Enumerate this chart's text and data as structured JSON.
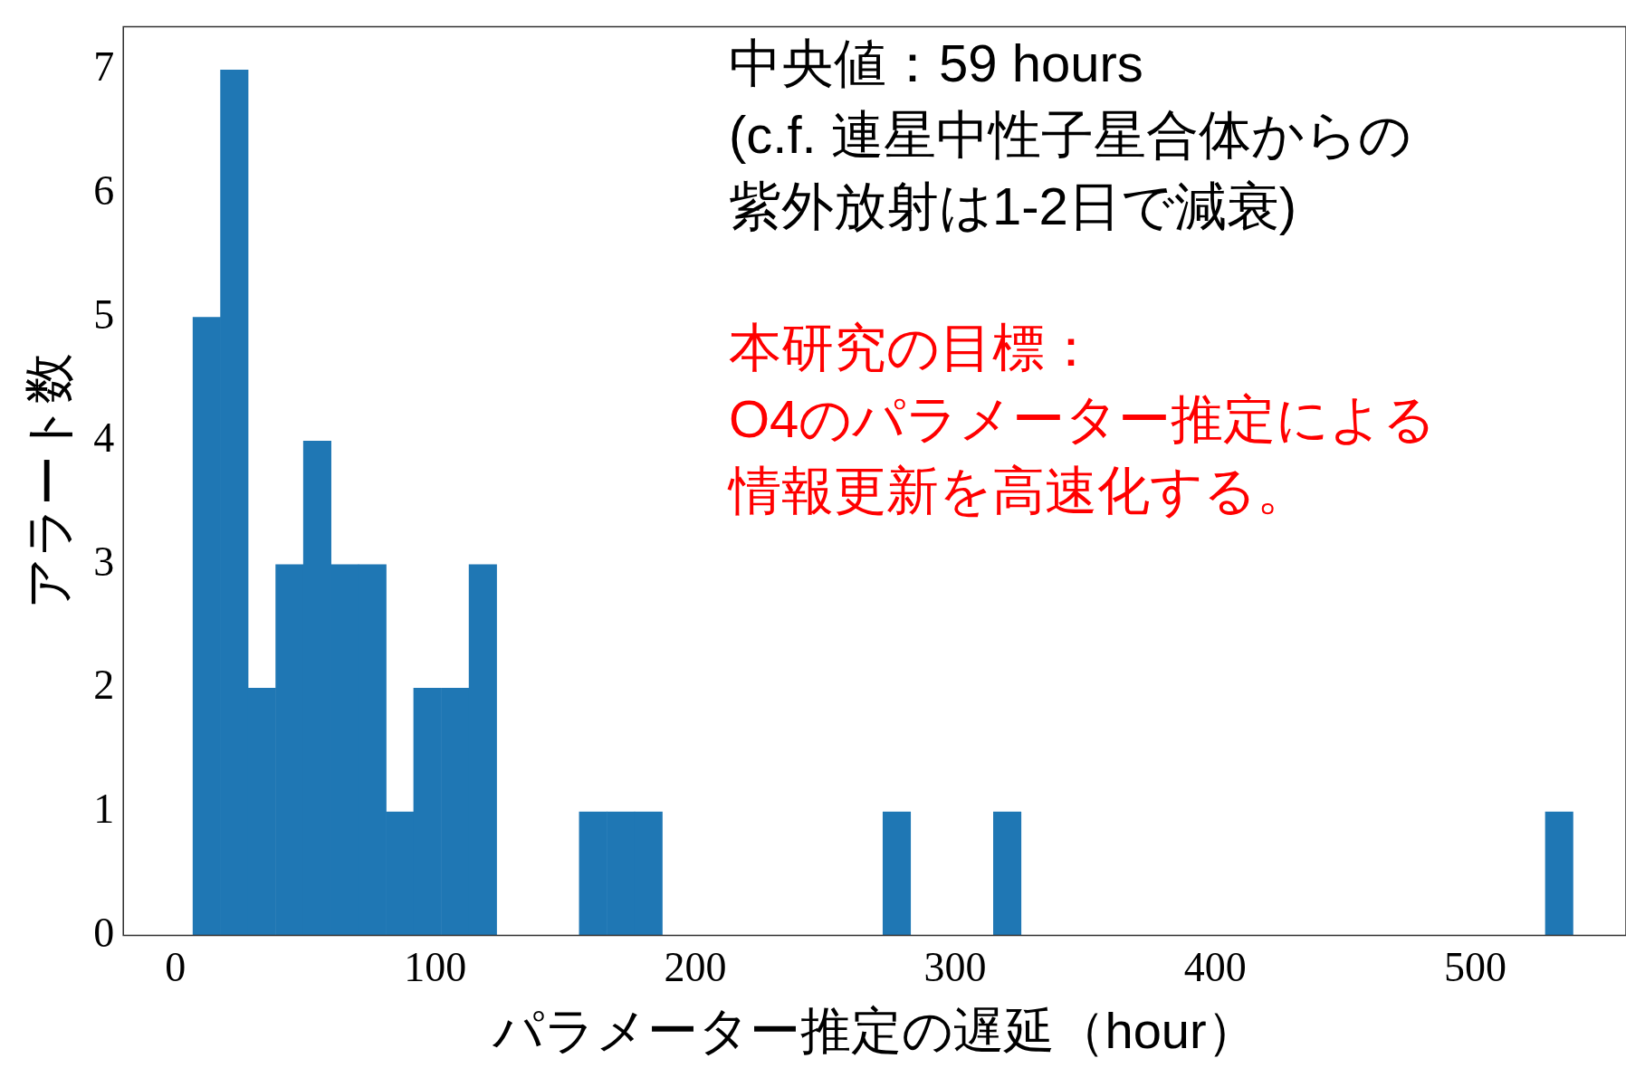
{
  "chart_data": {
    "type": "histogram",
    "xlabel": "パラメーター推定の遅延（hour）",
    "ylabel": "アラート数",
    "bins": [
      6.8,
      17.4,
      28.0,
      38.6,
      49.3,
      59.9,
      70.5,
      81.1,
      91.7,
      102.3,
      113.0,
      123.6,
      134.2,
      144.8,
      155.4,
      166.0,
      176.7,
      187.3,
      197.9,
      208.5,
      219.1,
      229.7,
      240.4,
      251.0,
      261.6,
      272.2,
      282.8,
      293.4,
      304.0,
      314.7,
      325.3,
      335.9,
      346.5,
      357.1,
      367.7,
      378.4,
      389.0,
      399.6,
      410.2,
      420.8,
      431.4,
      442.1,
      452.7,
      463.3,
      473.9,
      484.5,
      495.1,
      505.8,
      516.4,
      527.0,
      537.6
    ],
    "values": [
      5,
      7,
      2,
      3,
      4,
      3,
      3,
      1,
      2,
      2,
      3,
      0,
      0,
      0,
      1,
      1,
      1,
      0,
      0,
      0,
      0,
      0,
      0,
      0,
      0,
      1,
      0,
      0,
      0,
      1,
      0,
      0,
      0,
      0,
      0,
      0,
      0,
      0,
      0,
      0,
      0,
      0,
      0,
      0,
      0,
      0,
      0,
      0,
      0,
      1
    ],
    "color": "#1f77b4",
    "xlim": [
      -20,
      558
    ],
    "xticks": [
      0,
      100,
      200,
      300,
      400,
      500
    ],
    "ylim": [
      0,
      7.35
    ],
    "yticks": [
      0,
      1,
      2,
      3,
      4,
      5,
      6,
      7
    ],
    "grid": false,
    "legend": false,
    "annotations": [
      "中央値：59 hours",
      "(c.f. 連星中性子星合体からの",
      "紫外放射は1-2日で減衰)",
      "本研究の目標：",
      "O4のパラメーター推定による",
      "情報更新を高速化する。"
    ]
  }
}
